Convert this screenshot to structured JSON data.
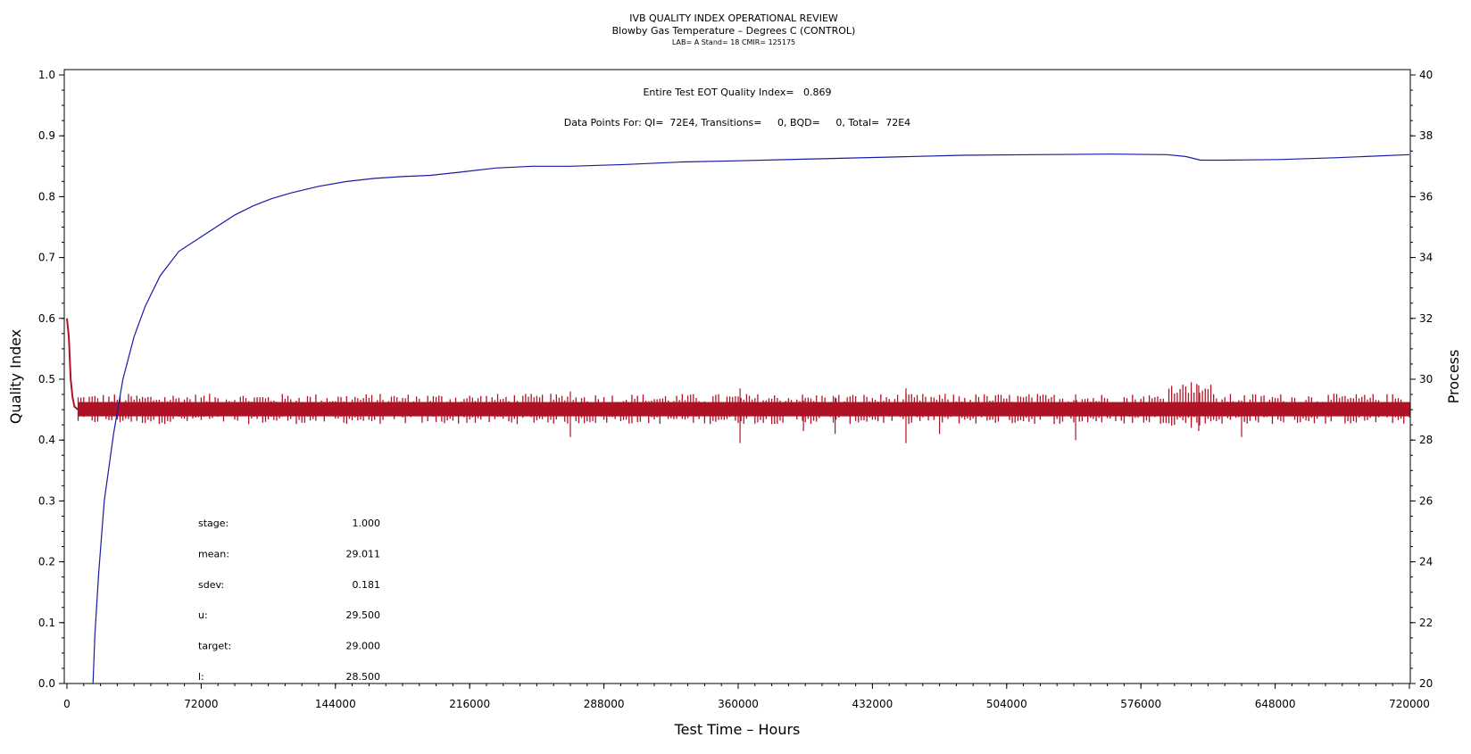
{
  "chart_data": {
    "type": "line",
    "title": "IVB QUALITY INDEX OPERATIONAL REVIEW",
    "subtitle": "Blowby Gas Temperature – Degrees C (CONTROL)",
    "subtitle2": "LAB= A Stand= 18 CMIR= 125175",
    "annotation_qi": "Entire Test EOT Quality Index=   0.869",
    "annotation_points": "Data Points For: QI=  72E4, Transitions=     0, BQD=     0, Total=  72E4",
    "xlabel": "Test Time – Hours",
    "ylabel": "Quality Index",
    "y2label": "Process",
    "xlim": [
      0,
      720000
    ],
    "ylim": [
      0,
      1.0
    ],
    "y2lim": [
      20,
      40
    ],
    "x_ticks": [
      0,
      72000,
      144000,
      216000,
      288000,
      360000,
      432000,
      504000,
      576000,
      648000,
      720000
    ],
    "y_ticks": [
      "0.0",
      "0.1",
      "0.2",
      "0.3",
      "0.4",
      "0.5",
      "0.6",
      "0.7",
      "0.8",
      "0.9",
      "1.0"
    ],
    "y2_ticks": [
      "20",
      "22",
      "24",
      "26",
      "28",
      "30",
      "32",
      "34",
      "36",
      "38",
      "40"
    ],
    "stats": [
      {
        "label": "stage:",
        "value": "1.000"
      },
      {
        "label": "mean:",
        "value": "29.011"
      },
      {
        "label": "sdev:",
        "value": "0.181"
      },
      {
        "label": "u:",
        "value": "29.500"
      },
      {
        "label": "target:",
        "value": "29.000"
      },
      {
        "label": "l:",
        "value": "28.500"
      }
    ],
    "series": [
      {
        "axis": "left",
        "color": "#1a1aa6",
        "x": [
          14000,
          15000,
          17000,
          20000,
          25000,
          30000,
          36000,
          42000,
          50000,
          60000,
          70000,
          80000,
          90000,
          100000,
          110000,
          120000,
          135000,
          150000,
          165000,
          180000,
          195000,
          210000,
          230000,
          250000,
          270000,
          300000,
          330000,
          360000,
          400000,
          440000,
          480000,
          520000,
          560000,
          590000,
          600000,
          608000,
          620000,
          650000,
          680000,
          720000
        ],
        "y": [
          0.0,
          0.08,
          0.18,
          0.3,
          0.41,
          0.5,
          0.57,
          0.62,
          0.67,
          0.71,
          0.73,
          0.75,
          0.77,
          0.785,
          0.797,
          0.806,
          0.817,
          0.825,
          0.83,
          0.833,
          0.835,
          0.84,
          0.847,
          0.85,
          0.85,
          0.853,
          0.857,
          0.859,
          0.862,
          0.865,
          0.868,
          0.869,
          0.87,
          0.869,
          0.866,
          0.86,
          0.86,
          0.861,
          0.864,
          0.869
        ]
      },
      {
        "axis": "right",
        "color": "#b01225",
        "mean": 29.011,
        "band_upper": 29.35,
        "band_lower": 28.7,
        "x": [
          0,
          1000,
          2000,
          3000,
          4000,
          6000
        ],
        "y": [
          32.0,
          31.4,
          30.0,
          29.4,
          29.1,
          29.0
        ],
        "spikes": [
          {
            "x": 270000,
            "low": 28.1,
            "high": 29.6
          },
          {
            "x": 361000,
            "low": 27.9,
            "high": 29.7
          },
          {
            "x": 395000,
            "low": 28.3,
            "high": 29.3
          },
          {
            "x": 412000,
            "low": 28.2,
            "high": 29.4
          },
          {
            "x": 450000,
            "low": 27.9,
            "high": 29.7
          },
          {
            "x": 468000,
            "low": 28.2,
            "high": 29.3
          },
          {
            "x": 541000,
            "low": 28.0,
            "high": 29.5
          },
          {
            "x": 603000,
            "low": 28.4,
            "high": 29.9
          },
          {
            "x": 607000,
            "low": 28.3,
            "high": 29.8
          },
          {
            "x": 630000,
            "low": 28.1,
            "high": 29.3
          }
        ]
      }
    ]
  }
}
